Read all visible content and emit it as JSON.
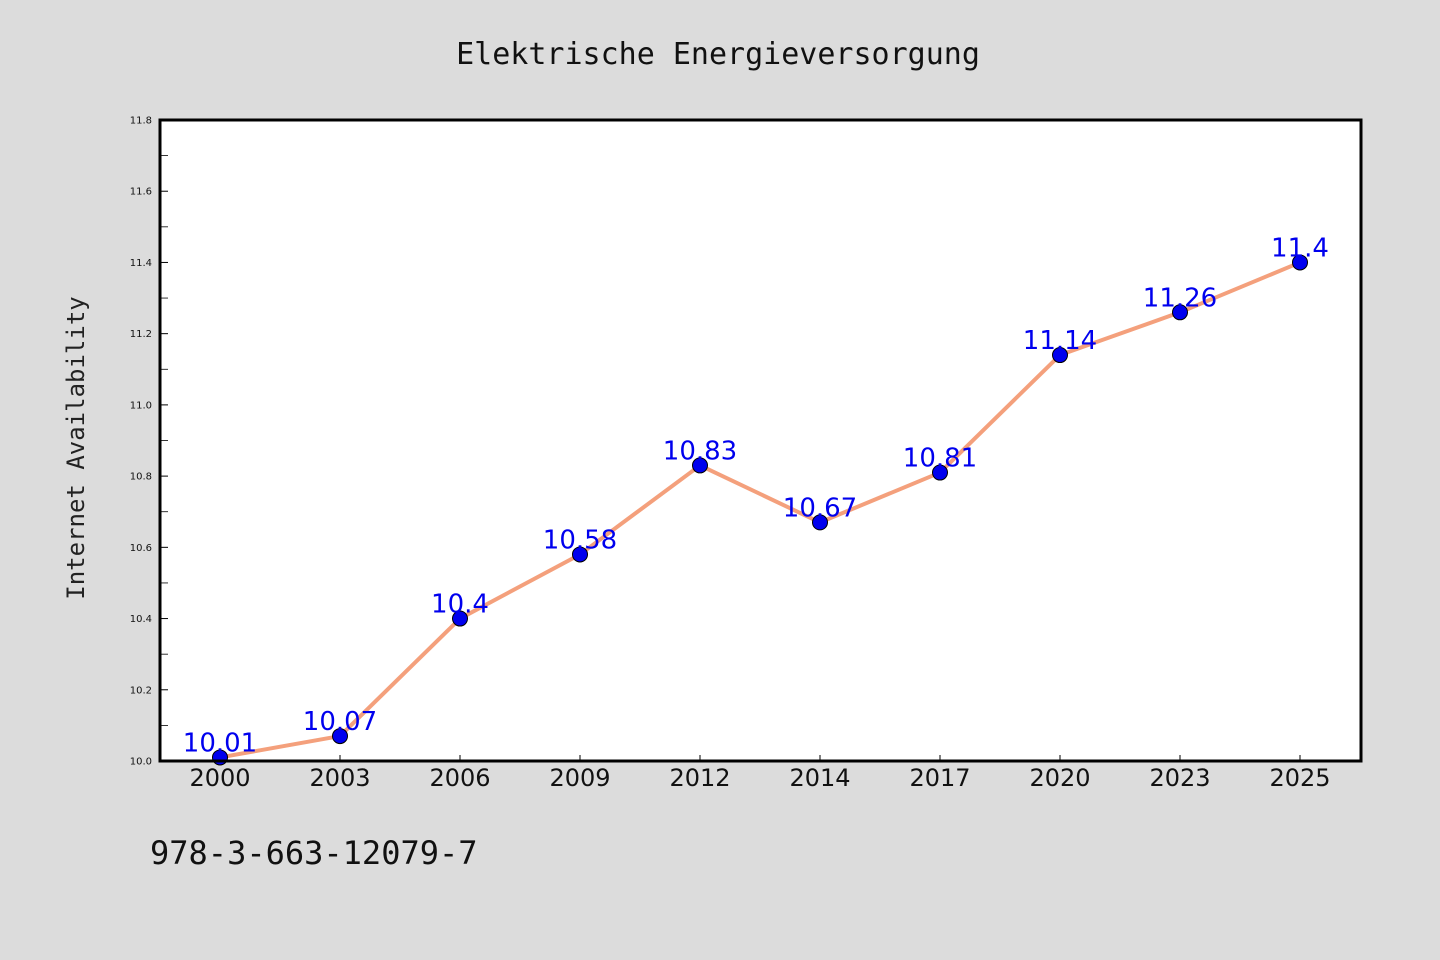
{
  "page": {
    "background": "#dcdcdc",
    "footer_code": "978-3-663-12079-7"
  },
  "chart_data": {
    "type": "line",
    "title": "Elektrische Energieversorgung",
    "xlabel": "",
    "ylabel": "Internet Availability",
    "categories": [
      "2000",
      "2003",
      "2006",
      "2009",
      "2012",
      "2014",
      "2017",
      "2020",
      "2023",
      "2025"
    ],
    "series": [
      {
        "values": [
          10.01,
          10.07,
          10.4,
          10.58,
          10.83,
          10.67,
          10.81,
          11.14,
          11.26,
          11.4
        ],
        "labels": [
          "10.01",
          "10.07",
          "10.4",
          "10.58",
          "10.83",
          "10.67",
          "10.81",
          "11.14",
          "11.26",
          "11.4"
        ],
        "line_color": "#f4a07c",
        "marker_color": "#0000ee",
        "label_color": "#0000ee"
      }
    ],
    "ylim": [
      10.0,
      11.8
    ],
    "yticks": [
      "10.0",
      "10.2",
      "10.4",
      "10.6",
      "10.8",
      "11.0",
      "11.2",
      "11.4",
      "11.6",
      "11.8"
    ],
    "grid": false,
    "legend": "none",
    "plot_background": "#ffffff"
  }
}
